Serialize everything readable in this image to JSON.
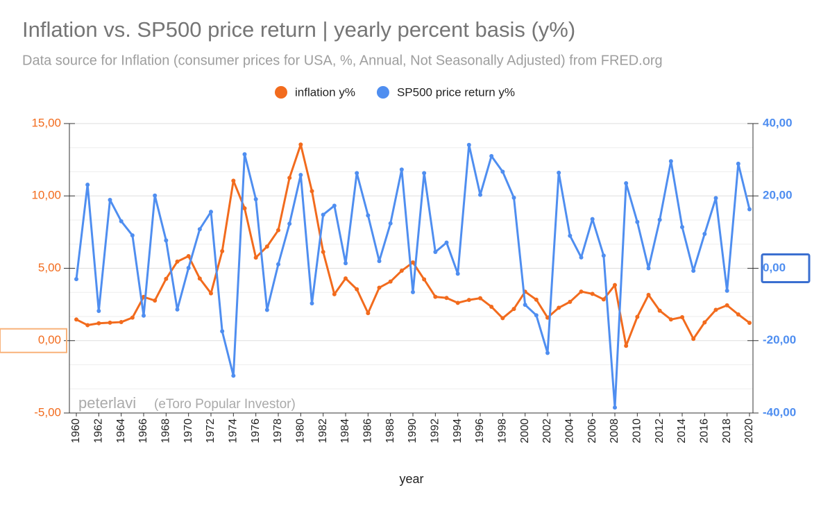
{
  "chart_data": {
    "type": "line",
    "title": "Inflation vs. SP500 price return | yearly percent basis (y%)",
    "subtitle": "Data source for Inflation (consumer prices for USA, %, Annual, Not Seasonally Adjusted) from FRED.org",
    "x_label": "year",
    "annotations": [
      "peterlavi",
      "(eToro Popular Investor)"
    ],
    "legend": "top",
    "grid": true,
    "x": [
      1960,
      1961,
      1962,
      1963,
      1964,
      1965,
      1966,
      1967,
      1968,
      1969,
      1970,
      1971,
      1972,
      1973,
      1974,
      1975,
      1976,
      1977,
      1978,
      1979,
      1980,
      1981,
      1982,
      1983,
      1984,
      1985,
      1986,
      1987,
      1988,
      1989,
      1990,
      1991,
      1992,
      1993,
      1994,
      1995,
      1996,
      1997,
      1998,
      1999,
      2000,
      2001,
      2002,
      2003,
      2004,
      2005,
      2006,
      2007,
      2008,
      2009,
      2010,
      2011,
      2012,
      2013,
      2014,
      2015,
      2016,
      2017,
      2018,
      2019,
      2020
    ],
    "xlim": [
      1960,
      2020
    ],
    "xticks": [
      1960,
      1962,
      1964,
      1966,
      1968,
      1970,
      1972,
      1974,
      1976,
      1978,
      1980,
      1982,
      1984,
      1986,
      1988,
      1990,
      1992,
      1994,
      1996,
      1998,
      2000,
      2002,
      2004,
      2006,
      2008,
      2010,
      2012,
      2014,
      2016,
      2018,
      2020
    ],
    "ylim": [
      -5,
      15
    ],
    "yticks": [
      {
        "value": -5,
        "label": "-5,00"
      },
      {
        "value": 0,
        "label": "0,00"
      },
      {
        "value": 5,
        "label": "5,00"
      },
      {
        "value": 10,
        "label": "10,00"
      },
      {
        "value": 15,
        "label": "15,00"
      }
    ],
    "y2lim": [
      -40,
      40
    ],
    "y2ticks": [
      {
        "value": -40,
        "label": "-40,00"
      },
      {
        "value": -20,
        "label": "-20,00"
      },
      {
        "value": 0,
        "label": "0,00"
      },
      {
        "value": 20,
        "label": "20,00"
      },
      {
        "value": 40,
        "label": "40,00"
      }
    ],
    "series": [
      {
        "name": "inflation y%",
        "color": "#f26b1d",
        "values": [
          1.46,
          1.07,
          1.2,
          1.24,
          1.28,
          1.59,
          3.02,
          2.77,
          4.27,
          5.46,
          5.84,
          4.29,
          3.27,
          6.18,
          11.05,
          9.14,
          5.74,
          6.5,
          7.63,
          11.25,
          13.55,
          10.33,
          6.13,
          3.21,
          4.3,
          3.55,
          1.9,
          3.66,
          4.08,
          4.83,
          5.4,
          4.23,
          3.03,
          2.95,
          2.61,
          2.81,
          2.93,
          2.34,
          1.55,
          2.19,
          3.38,
          2.83,
          1.59,
          2.27,
          2.68,
          3.39,
          3.23,
          2.85,
          3.84,
          -0.36,
          1.64,
          3.16,
          2.07,
          1.46,
          1.62,
          0.12,
          1.26,
          2.13,
          2.44,
          1.81,
          1.23
        ]
      },
      {
        "name": "SP500 price return y%",
        "color": "#4f8ef0",
        "axis": "y2",
        "values": [
          -3.0,
          23.1,
          -11.8,
          18.9,
          13.0,
          9.1,
          -13.1,
          20.1,
          7.7,
          -11.4,
          0.1,
          10.8,
          15.6,
          -17.4,
          -29.7,
          31.5,
          19.1,
          -11.5,
          1.1,
          12.3,
          25.8,
          -9.7,
          14.8,
          17.3,
          1.4,
          26.3,
          14.6,
          2.0,
          12.4,
          27.3,
          -6.6,
          26.3,
          4.5,
          7.1,
          -1.5,
          34.1,
          20.3,
          31.0,
          26.7,
          19.5,
          -10.1,
          -13.0,
          -23.4,
          26.4,
          9.0,
          3.0,
          13.6,
          3.5,
          -38.5,
          23.5,
          12.8,
          0.0,
          13.4,
          29.6,
          11.4,
          -0.7,
          9.5,
          19.4,
          -6.2,
          28.9,
          16.3
        ]
      }
    ]
  }
}
